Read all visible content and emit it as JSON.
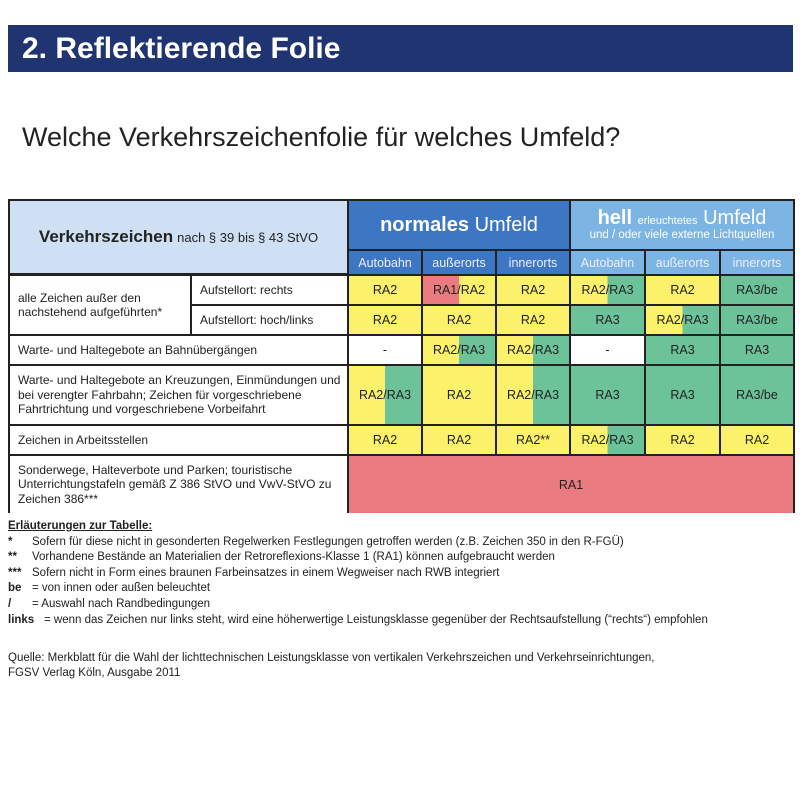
{
  "banner": "2. Reflektierende Folie",
  "subtitle": "Welche Verkehrszeichenfolie für welches Umfeld?",
  "colors": {
    "yellow": "#fbf16a",
    "green": "#6cc39a",
    "red": "#ea7b80",
    "white": "#ffffff",
    "navy": "#1f3470"
  },
  "table": {
    "header_left_bold": "Verkehrszeichen",
    "header_left_rest": "nach § 39 bis § 43 StVO",
    "normal_bold": "normales",
    "normal_rest": "Umfeld",
    "hell_bold": "hell",
    "hell_small": "erleuchtetes",
    "hell_rest": "Umfeld",
    "hell_line2": "und / oder viele externe Lichtquellen",
    "columns": [
      "Autobahn",
      "außerorts",
      "innerorts",
      "Autobahn",
      "außerorts",
      "innerorts"
    ],
    "group_label": "alle Zeichen außer den nachstehend aufgeführten*",
    "rows": [
      {
        "label": "Aufstellort: rechts",
        "cells": [
          [
            "RA2",
            "yellow"
          ],
          [
            "RA1/RA2",
            "red-yellow"
          ],
          [
            "RA2",
            "yellow"
          ],
          [
            "RA2/RA3",
            "yellow-green"
          ],
          [
            "RA2",
            "yellow"
          ],
          [
            "RA3/be",
            "green"
          ]
        ]
      },
      {
        "label": "Aufstellort: hoch/links",
        "cells": [
          [
            "RA2",
            "yellow"
          ],
          [
            "RA2",
            "yellow"
          ],
          [
            "RA2",
            "yellow"
          ],
          [
            "RA3",
            "green"
          ],
          [
            "RA2/RA3",
            "yellow-green"
          ],
          [
            "RA3/be",
            "green"
          ]
        ]
      },
      {
        "label": "Warte- und Haltegebote an Bahnübergängen",
        "cells": [
          [
            "-",
            "white"
          ],
          [
            "RA2/RA3",
            "yellow-green"
          ],
          [
            "RA2/RA3",
            "yellow-green"
          ],
          [
            "-",
            "white"
          ],
          [
            "RA3",
            "green"
          ],
          [
            "RA3",
            "green"
          ]
        ]
      },
      {
        "label": "Warte- und Haltegebote an Kreuzungen, Einmündungen und bei verengter Fahrbahn; Zeichen für vorgeschriebene Fahrtrichtung und vorgeschriebene Vorbeifahrt",
        "cells": [
          [
            "RA2/RA3",
            "yellow-green"
          ],
          [
            "RA2",
            "yellow"
          ],
          [
            "RA2/RA3",
            "yellow-green"
          ],
          [
            "RA3",
            "green"
          ],
          [
            "RA3",
            "green"
          ],
          [
            "RA3/be",
            "green"
          ]
        ]
      },
      {
        "label": "Zeichen in Arbeitsstellen",
        "cells": [
          [
            "RA2",
            "yellow"
          ],
          [
            "RA2",
            "yellow"
          ],
          [
            "RA2**",
            "yellow"
          ],
          [
            "RA2/RA3",
            "yellow-green"
          ],
          [
            "RA2",
            "yellow"
          ],
          [
            "RA2",
            "yellow"
          ]
        ]
      },
      {
        "label": "Sonderwege, Halteverbote und Parken; touristische Unterrichtungstafeln gemäß Z 386 StVO und VwV-StVO zu Zeichen 386***",
        "span": [
          "RA1",
          "red"
        ]
      }
    ]
  },
  "notes": {
    "title": "Erläuterungen zur Tabelle:",
    "items": [
      {
        "key": "*",
        "text": "Sofern für diese nicht in gesonderten Regelwerken Festlegungen getroffen werden (z.B. Zeichen 350 in den R-FGÜ)"
      },
      {
        "key": "**",
        "text": "Vorhandene Bestände an Materialien der Retroreflexions-Klasse 1 (RA1) können aufgebraucht werden"
      },
      {
        "key": "***",
        "text": "Sofern nicht in Form eines braunen Farbeinsatzes in einem Wegweiser nach RWB integriert"
      },
      {
        "key": "be",
        "text": "= von innen oder außen beleuchtet"
      },
      {
        "key": "/",
        "text": "= Auswahl nach Randbedingungen"
      },
      {
        "key": "links",
        "text": "= wenn das Zeichen nur links steht, wird eine höherwertige Leistungsklasse gegenüber der Rechtsaufstellung (“rechts“) empfohlen"
      }
    ]
  },
  "source": [
    "Quelle: Merkblatt für die Wahl der lichttechnischen Leistungsklasse von vertikalen Verkehrszeichen und Verkehrseinrichtungen,",
    "FGSV Verlag Köln, Ausgabe 2011"
  ]
}
